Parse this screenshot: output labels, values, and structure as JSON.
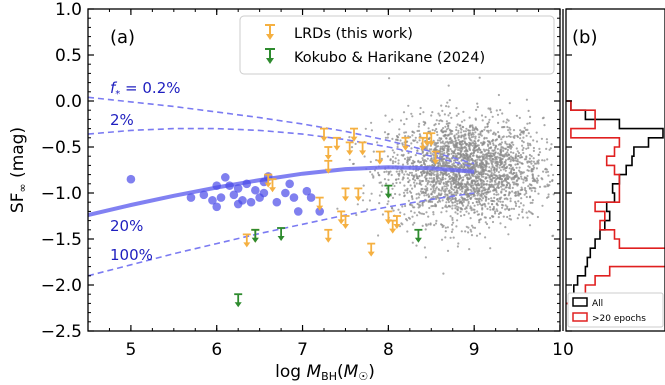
{
  "chart_data": [
    {
      "type": "scatter",
      "panel_label": "(a)",
      "xlabel": "log M_BH(M☉)",
      "ylabel": "SF∞ (mag)",
      "xlim": [
        4.5,
        10
      ],
      "ylim": [
        -2.5,
        1.0
      ],
      "y_inverted": false,
      "xticks": [
        5,
        6,
        7,
        8,
        9,
        10
      ],
      "yticks": [
        1.0,
        0.5,
        0.0,
        -0.5,
        -1.0,
        -1.5,
        -2.0,
        -2.5
      ],
      "ytick_labels": [
        "1.0",
        "0.5",
        "0.0",
        "−0.5",
        "−1.0",
        "−1.5",
        "−2.0",
        "−2.5"
      ],
      "legend_position": "top-right",
      "legend": [
        {
          "label": "LRDs (this work)",
          "color": "#f5b041",
          "marker": "upper-limit-arrow"
        },
        {
          "label": "Kokubo & Harikane (2024)",
          "color": "#2e8b2e",
          "marker": "upper-limit-arrow"
        }
      ],
      "curve_labels": [
        {
          "text": "f",
          "sub": "*",
          "rest": " = 0.2%"
        },
        {
          "text": "2%"
        },
        {
          "text": "20%"
        },
        {
          "text": "100%"
        }
      ],
      "curves": [
        {
          "name": "0.2%",
          "style": "dashed",
          "x": [
            4.5,
            5.0,
            5.5,
            6.0,
            6.5,
            7.0,
            7.5,
            8.0,
            8.5,
            9.0
          ],
          "y": [
            0.04,
            -0.01,
            -0.06,
            -0.12,
            -0.18,
            -0.25,
            -0.33,
            -0.43,
            -0.55,
            -0.68
          ]
        },
        {
          "name": "2%",
          "style": "dashed",
          "x": [
            4.5,
            5.0,
            5.5,
            6.0,
            6.5,
            7.0,
            7.5,
            8.0,
            8.5,
            9.0
          ],
          "y": [
            -0.36,
            -0.32,
            -0.3,
            -0.3,
            -0.32,
            -0.36,
            -0.42,
            -0.5,
            -0.6,
            -0.72
          ]
        },
        {
          "name": "20%",
          "style": "solid",
          "x": [
            4.5,
            5.0,
            5.5,
            6.0,
            6.5,
            7.0,
            7.5,
            8.0,
            8.5,
            9.0
          ],
          "y": [
            -1.24,
            -1.13,
            -1.03,
            -0.94,
            -0.86,
            -0.79,
            -0.74,
            -0.72,
            -0.73,
            -0.77
          ]
        },
        {
          "name": "100%",
          "style": "dashed",
          "x": [
            4.5,
            5.0,
            5.5,
            6.0,
            6.5,
            7.0,
            7.5,
            8.0,
            8.5,
            9.0
          ],
          "y": [
            -1.9,
            -1.78,
            -1.66,
            -1.55,
            -1.44,
            -1.34,
            -1.24,
            -1.15,
            -1.07,
            -1.0
          ]
        }
      ],
      "blue_points": [
        {
          "x": 5.0,
          "y": -0.85
        },
        {
          "x": 5.7,
          "y": -1.05
        },
        {
          "x": 5.85,
          "y": -1.02
        },
        {
          "x": 5.95,
          "y": -1.08
        },
        {
          "x": 6.0,
          "y": -0.92
        },
        {
          "x": 6.05,
          "y": -1.05
        },
        {
          "x": 6.1,
          "y": -0.83
        },
        {
          "x": 6.15,
          "y": -0.92
        },
        {
          "x": 6.2,
          "y": -1.02
        },
        {
          "x": 6.25,
          "y": -0.95
        },
        {
          "x": 6.3,
          "y": -1.08
        },
        {
          "x": 6.35,
          "y": -0.9
        },
        {
          "x": 6.4,
          "y": -1.1
        },
        {
          "x": 6.45,
          "y": -0.97
        },
        {
          "x": 6.5,
          "y": -1.05
        },
        {
          "x": 6.55,
          "y": -1.0
        },
        {
          "x": 6.6,
          "y": -0.82
        },
        {
          "x": 6.7,
          "y": -1.1
        },
        {
          "x": 6.8,
          "y": -1.0
        },
        {
          "x": 6.85,
          "y": -0.9
        },
        {
          "x": 6.9,
          "y": -1.05
        },
        {
          "x": 6.95,
          "y": -1.2
        },
        {
          "x": 7.05,
          "y": -0.98
        },
        {
          "x": 7.1,
          "y": -1.05
        },
        {
          "x": 7.2,
          "y": -1.2
        },
        {
          "x": 6.0,
          "y": -1.15
        },
        {
          "x": 6.25,
          "y": -1.12
        },
        {
          "x": 6.55,
          "y": -0.88
        }
      ],
      "lrd_upper_limits": [
        {
          "x": 6.35,
          "y": -1.45
        },
        {
          "x": 6.45,
          "y": -1.4
        },
        {
          "x": 6.6,
          "y": -0.8
        },
        {
          "x": 6.65,
          "y": -0.85
        },
        {
          "x": 7.2,
          "y": -1.05
        },
        {
          "x": 7.25,
          "y": -0.3
        },
        {
          "x": 7.3,
          "y": -0.5
        },
        {
          "x": 7.3,
          "y": -0.65
        },
        {
          "x": 7.3,
          "y": -1.4
        },
        {
          "x": 7.4,
          "y": -0.4
        },
        {
          "x": 7.45,
          "y": -1.2
        },
        {
          "x": 7.5,
          "y": -0.95
        },
        {
          "x": 7.5,
          "y": -1.25
        },
        {
          "x": 7.55,
          "y": -0.45
        },
        {
          "x": 7.6,
          "y": -0.3
        },
        {
          "x": 7.65,
          "y": -0.95
        },
        {
          "x": 7.7,
          "y": -0.45
        },
        {
          "x": 7.8,
          "y": -1.55
        },
        {
          "x": 7.9,
          "y": -0.55
        },
        {
          "x": 8.0,
          "y": -1.2
        },
        {
          "x": 8.05,
          "y": -1.3
        },
        {
          "x": 8.1,
          "y": -1.25
        },
        {
          "x": 8.2,
          "y": -0.4
        },
        {
          "x": 8.4,
          "y": -0.4
        },
        {
          "x": 8.45,
          "y": -0.35
        },
        {
          "x": 8.5,
          "y": -0.35
        },
        {
          "x": 8.55,
          "y": -0.55
        }
      ],
      "kh24_upper_limits": [
        {
          "x": 6.25,
          "y": -2.1
        },
        {
          "x": 6.45,
          "y": -1.4
        },
        {
          "x": 6.75,
          "y": -1.38
        },
        {
          "x": 8.0,
          "y": -0.92
        },
        {
          "x": 8.35,
          "y": -1.4
        }
      ],
      "gray_cloud": {
        "center_x": 8.9,
        "center_y": -0.75,
        "spread_x": 0.45,
        "spread_y": 0.28,
        "count": 2600
      }
    },
    {
      "type": "histogram",
      "panel_label": "(b)",
      "xticks_shown": [
        "10"
      ],
      "legend_position": "bottom-right",
      "legend": [
        {
          "label": "All",
          "color": "#000000"
        },
        {
          "label": ">20 epochs",
          "color": "#e02020"
        }
      ],
      "bin_edges": [
        -2.2,
        -2.1,
        -2.0,
        -1.9,
        -1.8,
        -1.7,
        -1.6,
        -1.5,
        -1.4,
        -1.3,
        -1.2,
        -1.1,
        -1.0,
        -0.9,
        -0.8,
        -0.7,
        -0.6,
        -0.5,
        -0.4,
        -0.3,
        -0.2,
        -0.1,
        0.0
      ],
      "all_counts": [
        0.05,
        0.08,
        0.12,
        0.2,
        0.22,
        0.25,
        0.3,
        0.35,
        0.4,
        0.45,
        0.42,
        0.5,
        0.48,
        0.55,
        0.62,
        0.68,
        0.7,
        0.85,
        1.0,
        0.55,
        0.2,
        0.05
      ],
      "epoch_counts": [
        0.12,
        0.2,
        0.3,
        0.45,
        1.1,
        1.1,
        0.55,
        0.5,
        0.35,
        0.4,
        0.3,
        0.55,
        0.55,
        0.55,
        0.5,
        0.42,
        0.5,
        0.55,
        0.05,
        0.3,
        0.3,
        0.05
      ]
    }
  ]
}
